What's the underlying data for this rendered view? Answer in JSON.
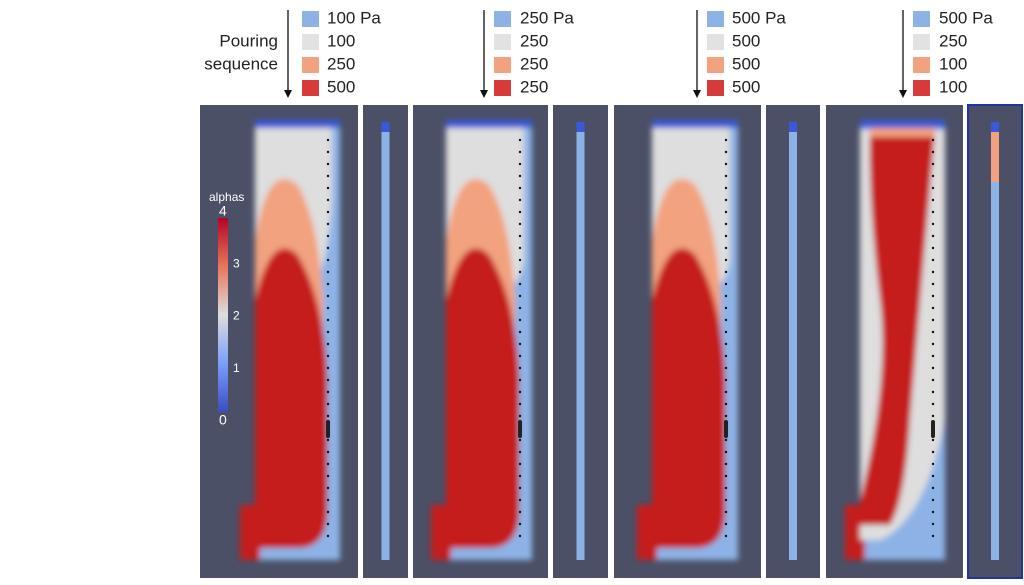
{
  "pouring_label": [
    "Pouring",
    "sequence"
  ],
  "sequences": [
    {
      "labels": [
        "100 Pa",
        "100",
        "250",
        "500"
      ]
    },
    {
      "labels": [
        "250 Pa",
        "250",
        "250",
        "250"
      ]
    },
    {
      "labels": [
        "500 Pa",
        "500",
        "500",
        "500"
      ]
    },
    {
      "labels": [
        "500 Pa",
        "250",
        "100",
        "100"
      ]
    }
  ],
  "legend_colors": [
    "#8db3e6",
    "#e2e2e2",
    "#f2a27f",
    "#d63a3a"
  ],
  "colorbar": {
    "title": "alphas",
    "ticks": [
      4,
      3,
      2,
      1,
      0
    ]
  }
}
